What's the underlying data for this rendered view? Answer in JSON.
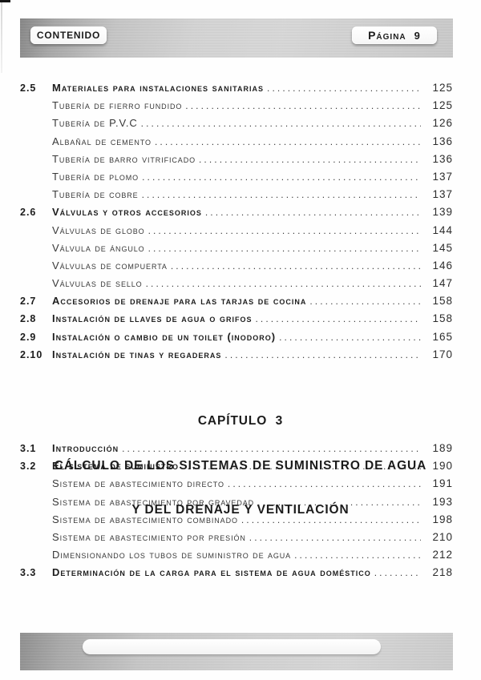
{
  "header": {
    "left_label": "CONTENIDO",
    "right_label": "Página",
    "page_number": "9"
  },
  "chapter_heading": {
    "line1": "CAPÍTULO  3",
    "line2": "CÁLCULO DE LOS SISTEMAS DE SUMINISTRO DE AGUA",
    "line3": "Y DEL DRENAJE Y VENTILACIÓN"
  },
  "toc_part1": [
    {
      "num": "2.5",
      "title": "Materiales para instalaciones sanitarias",
      "page": "125",
      "bold": true
    },
    {
      "num": "",
      "title": "Tubería de fierro fundido",
      "page": "125",
      "bold": false
    },
    {
      "num": "",
      "title": "Tubería de P.V.C",
      "page": "126",
      "bold": false
    },
    {
      "num": "",
      "title": "Albañal de cemento",
      "page": "136",
      "bold": false
    },
    {
      "num": "",
      "title": "Tubería de barro vitrificado",
      "page": "136",
      "bold": false
    },
    {
      "num": "",
      "title": "Tubería de plomo",
      "page": "137",
      "bold": false
    },
    {
      "num": "",
      "title": "Tubería de cobre",
      "page": "137",
      "bold": false
    },
    {
      "num": "2.6",
      "title": "Válvulas y otros accesorios",
      "page": "139",
      "bold": true
    },
    {
      "num": "",
      "title": "Válvulas de globo",
      "page": "144",
      "bold": false
    },
    {
      "num": "",
      "title": "Válvula de ángulo",
      "page": "145",
      "bold": false
    },
    {
      "num": "",
      "title": "Válvulas de compuerta",
      "page": "146",
      "bold": false
    },
    {
      "num": "",
      "title": "Válvulas de sello",
      "page": "147",
      "bold": false
    },
    {
      "num": "2.7",
      "title": "Accesorios de drenaje para las tarjas de cocina",
      "page": "158",
      "bold": true
    },
    {
      "num": "2.8",
      "title": "Instalación de llaves de agua o grifos",
      "page": "158",
      "bold": true
    },
    {
      "num": "2.9",
      "title": "Instalación o cambio de un toilet (inodoro)",
      "page": "165",
      "bold": true
    },
    {
      "num": "2.10",
      "title": "Instalación de tinas y regaderas",
      "page": "170",
      "bold": true
    }
  ],
  "toc_part2": [
    {
      "num": "3.1",
      "title": "Introducción",
      "page": "189",
      "bold": true
    },
    {
      "num": "3.2",
      "title": "El sistema de suministro",
      "page": "190",
      "bold": true
    },
    {
      "num": "",
      "title": "Sistema de abastecimiento directo",
      "page": "191",
      "bold": false
    },
    {
      "num": "",
      "title": "Sistema de abastecimiento por gravedad",
      "page": "193",
      "bold": false
    },
    {
      "num": "",
      "title": "Sistema de abastecimiento combinado",
      "page": "198",
      "bold": false
    },
    {
      "num": "",
      "title": "Sistema de abastecimiento por presión",
      "page": "210",
      "bold": false
    },
    {
      "num": "",
      "title": "Dimensionando los tubos de suministro de agua",
      "page": "212",
      "bold": false
    },
    {
      "num": "3.3",
      "title": "Determinación de la carga para el sistema de agua doméstico",
      "page": "218",
      "bold": true
    }
  ]
}
